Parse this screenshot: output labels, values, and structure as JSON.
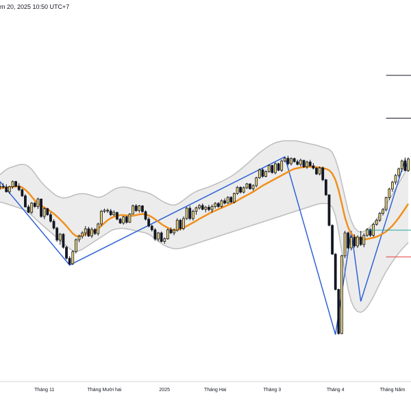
{
  "header": {
    "timestamp": "m 20, 2025 10:50 UTC+7"
  },
  "colors": {
    "candle_up_fill": "#e8d27a",
    "candle_down_fill": "#131722",
    "candle_wick": "#131722",
    "moving_average": "#f0901c",
    "band_fill": "#ececec",
    "band_line": "#bdbdbd",
    "zigzag": "#2f62d6",
    "level_black": "#131722",
    "level_red": "#e53935",
    "level_teal": "#26a69a"
  },
  "chart_data": {
    "type": "candlestick",
    "title": "",
    "xlabel": "",
    "ylabel": "",
    "x_ticks": [
      {
        "label": "Tháng 11",
        "index": 14
      },
      {
        "label": "Tháng Mười hai",
        "index": 33
      },
      {
        "label": "2025",
        "index": 52
      },
      {
        "label": "Tháng Hai",
        "index": 68
      },
      {
        "label": "Tháng 3",
        "index": 86
      },
      {
        "label": "Tháng 4",
        "index": 106
      },
      {
        "label": "Tháng Năm",
        "index": 124
      }
    ],
    "ylim": [
      0,
      100
    ],
    "candles": [
      [
        65.6,
        66.7,
        64.6,
        65.6
      ],
      [
        65.6,
        66.5,
        64.9,
        65.4
      ],
      [
        65.4,
        66.2,
        63.8,
        64.0
      ],
      [
        64.0,
        65.8,
        63.4,
        65.5
      ],
      [
        65.5,
        67.3,
        64.9,
        67.0
      ],
      [
        67.0,
        67.2,
        65.3,
        65.6
      ],
      [
        65.6,
        66.5,
        64.2,
        64.6
      ],
      [
        64.6,
        64.9,
        62.5,
        62.8
      ],
      [
        62.8,
        63.3,
        59.4,
        59.6
      ],
      [
        59.6,
        60.2,
        57.8,
        58.0
      ],
      [
        58.0,
        61.0,
        57.5,
        60.7
      ],
      [
        60.7,
        61.1,
        59.3,
        59.7
      ],
      [
        59.7,
        62.3,
        59.0,
        61.9
      ],
      [
        61.9,
        62.0,
        56.4,
        56.8
      ],
      [
        56.8,
        59.5,
        56.0,
        59.1
      ],
      [
        59.1,
        59.3,
        57.0,
        57.3
      ],
      [
        57.3,
        58.0,
        55.0,
        55.4
      ],
      [
        55.4,
        56.0,
        53.0,
        53.4
      ],
      [
        53.4,
        53.8,
        49.4,
        49.9
      ],
      [
        49.9,
        52.0,
        48.5,
        51.6
      ],
      [
        51.6,
        51.9,
        47.4,
        47.8
      ],
      [
        47.8,
        48.3,
        44.2,
        44.6
      ],
      [
        44.6,
        45.2,
        42.6,
        43.0
      ],
      [
        43.0,
        47.0,
        42.6,
        46.5
      ],
      [
        46.5,
        50.4,
        46.0,
        50.0
      ],
      [
        50.0,
        51.5,
        49.3,
        51.0
      ],
      [
        51.0,
        52.5,
        50.3,
        52.0
      ],
      [
        52.0,
        54.0,
        51.0,
        53.2
      ],
      [
        53.2,
        53.8,
        50.8,
        51.1
      ],
      [
        51.1,
        53.6,
        50.5,
        53.0
      ],
      [
        53.0,
        53.4,
        51.4,
        51.8
      ],
      [
        51.8,
        55.0,
        51.2,
        54.6
      ],
      [
        54.6,
        58.7,
        54.0,
        58.3
      ],
      [
        58.3,
        59.1,
        57.8,
        58.6
      ],
      [
        58.6,
        59.1,
        57.8,
        58.4
      ],
      [
        58.4,
        59.0,
        56.9,
        57.3
      ],
      [
        57.3,
        58.6,
        56.9,
        58.0
      ],
      [
        58.0,
        58.1,
        55.7,
        56.0
      ],
      [
        56.0,
        56.4,
        54.6,
        54.9
      ],
      [
        54.9,
        57.0,
        54.4,
        56.7
      ],
      [
        56.7,
        57.0,
        54.7,
        55.1
      ],
      [
        55.1,
        57.8,
        54.9,
        57.5
      ],
      [
        57.5,
        60.3,
        57.4,
        59.9
      ],
      [
        59.9,
        60.4,
        58.1,
        58.5
      ],
      [
        58.5,
        60.2,
        57.9,
        59.9
      ],
      [
        59.9,
        60.1,
        57.9,
        58.2
      ],
      [
        58.2,
        58.6,
        55.6,
        56.0
      ],
      [
        56.0,
        56.6,
        53.6,
        54.0
      ],
      [
        54.0,
        54.4,
        52.4,
        52.9
      ],
      [
        52.9,
        53.4,
        49.7,
        50.2
      ],
      [
        50.2,
        52.3,
        49.5,
        52.0
      ],
      [
        52.0,
        52.4,
        49.2,
        49.5
      ],
      [
        49.5,
        50.7,
        48.8,
        50.3
      ],
      [
        50.3,
        53.3,
        50.0,
        52.9
      ],
      [
        52.9,
        53.6,
        51.7,
        52.0
      ],
      [
        52.0,
        53.3,
        51.3,
        52.8
      ],
      [
        52.8,
        56.3,
        52.3,
        55.7
      ],
      [
        55.7,
        56.1,
        52.7,
        53.3
      ],
      [
        53.3,
        56.8,
        52.8,
        56.2
      ],
      [
        56.2,
        59.6,
        55.8,
        59.2
      ],
      [
        59.2,
        59.9,
        55.7,
        56.2
      ],
      [
        56.2,
        58.8,
        55.6,
        58.3
      ],
      [
        58.3,
        59.7,
        57.3,
        59.3
      ],
      [
        59.3,
        60.4,
        58.8,
        60.0
      ],
      [
        60.0,
        60.6,
        58.6,
        58.9
      ],
      [
        58.9,
        59.9,
        58.0,
        59.5
      ],
      [
        59.5,
        60.2,
        58.3,
        58.8
      ],
      [
        58.8,
        60.3,
        57.9,
        59.7
      ],
      [
        59.7,
        61.0,
        59.1,
        60.6
      ],
      [
        60.6,
        61.0,
        59.3,
        59.7
      ],
      [
        59.7,
        61.8,
        59.3,
        61.4
      ],
      [
        61.4,
        62.1,
        60.3,
        60.7
      ],
      [
        60.7,
        62.7,
        60.5,
        62.4
      ],
      [
        62.4,
        62.7,
        60.7,
        61.0
      ],
      [
        61.0,
        63.8,
        60.6,
        63.5
      ],
      [
        63.5,
        65.7,
        63.1,
        65.3
      ],
      [
        65.3,
        65.6,
        63.5,
        63.9
      ],
      [
        63.9,
        65.6,
        63.5,
        65.2
      ],
      [
        65.2,
        66.6,
        64.8,
        66.3
      ],
      [
        66.3,
        66.5,
        64.6,
        64.9
      ],
      [
        64.9,
        66.2,
        64.3,
        65.8
      ],
      [
        65.8,
        68.4,
        65.3,
        68.1
      ],
      [
        68.1,
        70.8,
        67.8,
        70.4
      ],
      [
        70.4,
        70.8,
        68.1,
        68.5
      ],
      [
        68.5,
        70.3,
        68.2,
        69.9
      ],
      [
        69.9,
        72.0,
        69.6,
        71.7
      ],
      [
        71.7,
        71.9,
        69.3,
        69.6
      ],
      [
        69.6,
        72.6,
        69.1,
        72.2
      ],
      [
        72.2,
        72.5,
        70.0,
        70.3
      ],
      [
        70.3,
        73.4,
        69.8,
        73.0
      ],
      [
        73.0,
        74.2,
        72.6,
        73.8
      ],
      [
        73.8,
        74.5,
        71.7,
        72.2
      ],
      [
        72.2,
        74.1,
        71.7,
        73.7
      ],
      [
        73.7,
        74.0,
        72.5,
        72.8
      ],
      [
        72.8,
        73.4,
        71.7,
        72.0
      ],
      [
        72.0,
        73.7,
        71.4,
        73.2
      ],
      [
        73.2,
        73.3,
        71.0,
        71.3
      ],
      [
        71.3,
        73.1,
        70.7,
        72.7
      ],
      [
        72.7,
        73.3,
        71.3,
        71.6
      ],
      [
        71.6,
        72.4,
        70.5,
        70.9
      ],
      [
        70.9,
        71.2,
        68.9,
        69.2
      ],
      [
        69.2,
        71.4,
        68.8,
        71.0
      ],
      [
        71.0,
        71.4,
        67.1,
        67.5
      ],
      [
        67.5,
        67.8,
        62.8,
        63.1
      ],
      [
        63.1,
        63.3,
        53.9,
        54.2
      ],
      [
        54.2,
        54.5,
        45.6,
        45.8
      ],
      [
        45.8,
        46.1,
        35.2,
        35.5
      ],
      [
        35.5,
        35.7,
        22.3,
        22.6
      ],
      [
        22.6,
        45.6,
        22.4,
        45.3
      ],
      [
        45.3,
        52.6,
        44.6,
        52.0
      ],
      [
        52.0,
        52.4,
        47.3,
        47.6
      ],
      [
        47.6,
        51.2,
        46.9,
        50.7
      ],
      [
        50.7,
        51.6,
        47.7,
        48.2
      ],
      [
        48.2,
        51.3,
        47.6,
        50.8
      ],
      [
        50.8,
        52.6,
        48.2,
        48.6
      ],
      [
        48.6,
        51.9,
        47.8,
        51.3
      ],
      [
        51.3,
        53.4,
        50.8,
        53.0
      ],
      [
        53.0,
        53.3,
        50.8,
        51.3
      ],
      [
        51.3,
        54.9,
        50.8,
        54.5
      ],
      [
        54.5,
        56.1,
        54.1,
        55.7
      ],
      [
        55.7,
        58.1,
        55.2,
        57.7
      ],
      [
        57.7,
        59.2,
        57.1,
        58.8
      ],
      [
        58.8,
        62.6,
        58.3,
        62.3
      ],
      [
        62.3,
        65.2,
        61.6,
        64.8
      ],
      [
        64.8,
        67.2,
        64.0,
        66.8
      ],
      [
        66.8,
        69.2,
        66.1,
        68.8
      ],
      [
        68.8,
        71.1,
        68.1,
        70.7
      ],
      [
        70.7,
        73.4,
        69.8,
        73.0
      ],
      [
        73.0,
        74.0,
        70.0,
        70.2
      ],
      [
        70.2,
        74.0,
        69.8,
        73.6
      ]
    ],
    "moving_average": [
      65.0,
      65.2,
      65.3,
      65.3,
      65.4,
      65.6,
      65.6,
      65.3,
      64.6,
      63.7,
      62.6,
      61.5,
      60.7,
      60.0,
      59.4,
      58.9,
      58.3,
      57.6,
      56.8,
      55.9,
      55.0,
      54.0,
      52.9,
      51.8,
      51.1,
      51.0,
      51.2,
      51.6,
      52.0,
      52.4,
      52.7,
      53.2,
      54.0,
      54.9,
      55.7,
      56.3,
      56.7,
      57.0,
      57.2,
      57.2,
      57.1,
      57.0,
      57.0,
      57.2,
      57.4,
      57.5,
      57.4,
      57.1,
      56.6,
      56.0,
      55.3,
      54.6,
      54.0,
      53.5,
      53.0,
      52.8,
      52.9,
      53.1,
      53.5,
      54.0,
      54.5,
      55.0,
      55.5,
      56.1,
      56.6,
      57.1,
      57.6,
      58.1,
      58.5,
      58.9,
      59.3,
      59.7,
      60.1,
      60.5,
      60.9,
      61.4,
      62.0,
      62.5,
      63.0,
      63.5,
      64.0,
      64.6,
      65.2,
      65.8,
      66.3,
      66.8,
      67.3,
      67.8,
      68.3,
      68.8,
      69.3,
      69.8,
      70.3,
      70.7,
      70.9,
      71.1,
      71.2,
      71.3,
      71.3,
      71.3,
      71.2,
      71.1,
      70.9,
      70.7,
      70.3,
      69.3,
      67.5,
      64.5,
      60.5,
      56.5,
      53.6,
      51.8,
      50.9,
      50.4,
      50.2,
      50.1,
      50.2,
      50.4,
      50.6,
      50.9,
      51.3,
      51.8,
      52.4,
      53.2,
      54.1,
      55.2,
      56.4,
      57.7,
      59.1,
      60.5
    ],
    "band_upper": [
      69.0,
      69.8,
      70.5,
      71.0,
      71.3,
      71.6,
      71.9,
      72.0,
      71.9,
      71.4,
      70.6,
      69.4,
      68.1,
      66.9,
      65.9,
      65.0,
      64.2,
      63.4,
      62.8,
      62.4,
      62.2,
      62.3,
      62.5,
      62.9,
      63.2,
      63.4,
      63.5,
      63.4,
      63.2,
      62.9,
      62.6,
      62.4,
      62.5,
      62.9,
      63.5,
      64.1,
      64.7,
      65.1,
      65.3,
      65.4,
      65.3,
      65.1,
      64.8,
      64.5,
      64.3,
      64.1,
      63.9,
      63.6,
      63.2,
      62.6,
      62.0,
      61.4,
      60.9,
      60.5,
      60.2,
      60.1,
      60.4,
      60.9,
      61.6,
      62.3,
      63.0,
      63.6,
      64.1,
      64.5,
      64.8,
      65.1,
      65.4,
      65.8,
      66.2,
      66.6,
      67.0,
      67.5,
      68.0,
      68.5,
      69.1,
      69.8,
      70.5,
      71.3,
      72.1,
      72.9,
      73.8,
      74.6,
      75.4,
      76.1,
      76.8,
      77.4,
      77.9,
      78.3,
      78.6,
      78.8,
      78.9,
      78.9,
      78.9,
      78.9,
      78.8,
      78.6,
      78.4,
      78.2,
      78.0,
      77.8,
      77.6,
      77.3,
      77.0,
      76.7,
      76.4,
      75.5,
      73.5,
      70.5,
      66.5,
      62.5,
      58.5,
      55.5,
      53.5,
      52.5,
      52.2,
      52.4,
      53.0,
      53.8,
      54.8,
      56.0,
      57.3,
      58.7,
      60.2,
      61.7,
      63.3,
      64.9,
      66.5,
      68.1,
      69.7,
      71.3
    ],
    "band_lower": [
      61.0,
      60.8,
      60.5,
      60.2,
      59.9,
      59.6,
      59.3,
      59.0,
      58.6,
      58.0,
      57.2,
      56.3,
      55.4,
      54.6,
      53.8,
      53.0,
      52.2,
      51.4,
      50.6,
      49.8,
      49.0,
      48.2,
      47.4,
      46.8,
      46.6,
      46.8,
      47.2,
      47.8,
      48.4,
      49.0,
      49.6,
      50.2,
      50.8,
      51.4,
      52.0,
      52.6,
      53.0,
      53.2,
      53.3,
      53.3,
      53.2,
      53.0,
      52.8,
      52.6,
      52.4,
      52.2,
      52.0,
      51.6,
      51.0,
      50.3,
      49.6,
      48.9,
      48.3,
      47.9,
      47.6,
      47.4,
      47.4,
      47.5,
      47.7,
      48.0,
      48.3,
      48.6,
      48.9,
      49.2,
      49.5,
      49.8,
      50.1,
      50.4,
      50.7,
      51.0,
      51.3,
      51.6,
      51.9,
      52.2,
      52.5,
      52.8,
      53.1,
      53.4,
      53.7,
      54.0,
      54.3,
      54.6,
      54.9,
      55.2,
      55.5,
      55.8,
      56.1,
      56.4,
      56.7,
      57.0,
      57.3,
      57.6,
      57.9,
      58.2,
      58.5,
      58.8,
      59.1,
      59.4,
      59.7,
      60.0,
      60.3,
      60.5,
      60.6,
      60.6,
      60.4,
      59.5,
      57.0,
      52.5,
      46.5,
      40.5,
      35.5,
      32.0,
      30.0,
      29.0,
      28.8,
      29.3,
      30.3,
      31.7,
      33.4,
      35.3,
      37.2,
      39.0,
      40.7,
      42.2,
      43.6,
      44.9,
      46.1,
      47.2,
      48.2,
      49.2
    ],
    "zigzag": [
      {
        "index": 0,
        "value": 67.0
      },
      {
        "index": 22,
        "value": 42.6
      },
      {
        "index": 90,
        "value": 74.2
      },
      {
        "index": 106,
        "value": 22.3
      },
      {
        "index": 111,
        "value": 52.6
      },
      {
        "index": 114,
        "value": 32.0
      },
      {
        "index": 128,
        "value": 73.4
      },
      {
        "index": 129,
        "value": 70.0
      }
    ],
    "levels": [
      {
        "value": 98.0,
        "color": "black",
        "x_start_index": 122
      },
      {
        "value": 85.5,
        "color": "black",
        "x_start_index": 122
      },
      {
        "value": 52.8,
        "color": "teal",
        "x_start_index": 116
      },
      {
        "value": 45.0,
        "color": "red",
        "x_start_index": 122
      }
    ],
    "grid": false,
    "legend": "none"
  }
}
